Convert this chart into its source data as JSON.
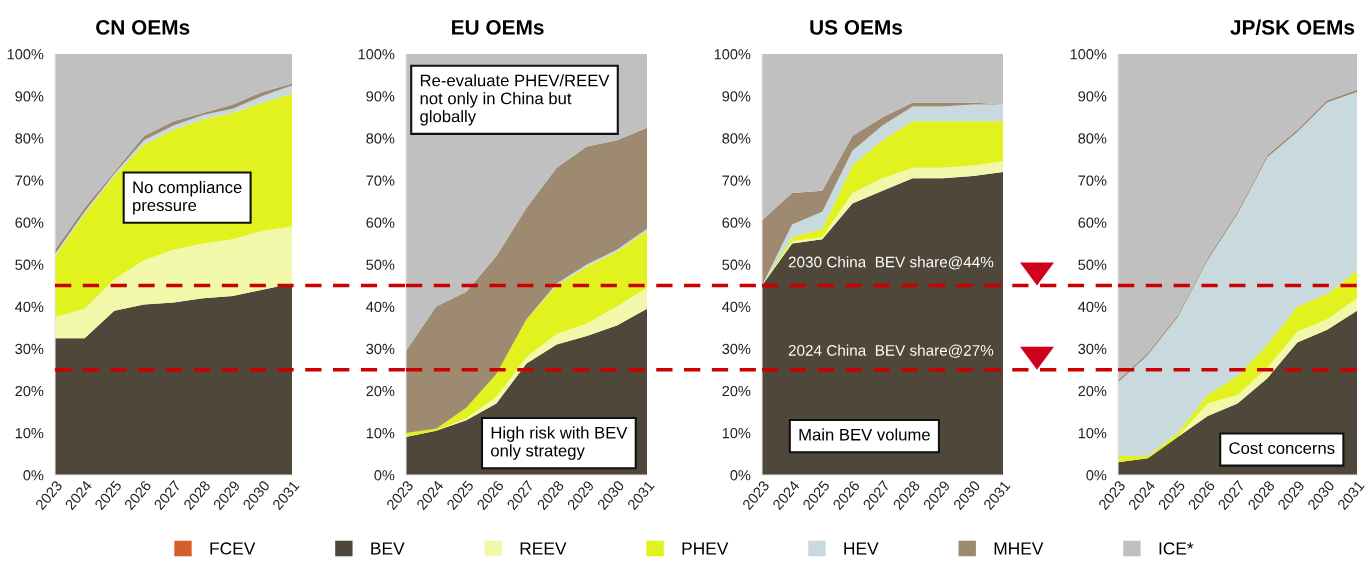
{
  "chart_data": [
    {
      "type": "area",
      "stacked": true,
      "title": "CN OEMs",
      "legend": "bottom",
      "categories": [
        "2023",
        "2024",
        "2025",
        "2026",
        "2027",
        "2028",
        "2029",
        "2030",
        "2031"
      ],
      "ylim": [
        0,
        100
      ],
      "yticks": [
        {
          "value": 0,
          "label": "0%"
        },
        {
          "value": 10,
          "label": "10%"
        },
        {
          "value": 20,
          "label": "20%"
        },
        {
          "value": 30,
          "label": "30%"
        },
        {
          "value": 40,
          "label": "40%"
        },
        {
          "value": 50,
          "label": "50%"
        },
        {
          "value": 60,
          "label": "60%"
        },
        {
          "value": 70,
          "label": "70%"
        },
        {
          "value": 80,
          "label": "80%"
        },
        {
          "value": 90,
          "label": "90%"
        },
        {
          "value": 100,
          "label": "100%"
        }
      ],
      "series": [
        {
          "name": "FCEV",
          "color": "#d45f28",
          "values": [
            null,
            null,
            null,
            null,
            null,
            null,
            null,
            null,
            null
          ]
        },
        {
          "name": "BEV",
          "color": "#4f4739",
          "values": [
            32.5,
            32.5,
            39,
            40.5,
            41,
            42,
            42.5,
            44,
            45.5
          ]
        },
        {
          "name": "REEV",
          "color": "#f1f8a9",
          "values": [
            5,
            7,
            7.5,
            10.5,
            12.5,
            13,
            13.5,
            14,
            13.5
          ]
        },
        {
          "name": "PHEV",
          "color": "#e2f21e",
          "values": [
            14.5,
            22.5,
            24.5,
            27.5,
            28.5,
            29.5,
            30,
            30.5,
            31.5
          ]
        },
        {
          "name": "HEV",
          "color": "#c8dade",
          "values": [
            0.5,
            0.5,
            0.5,
            1,
            1,
            1,
            1,
            1.5,
            2
          ]
        },
        {
          "name": "MHEV",
          "color": "#9d8a70",
          "values": [
            1,
            1,
            0.5,
            1,
            1,
            0.5,
            1,
            1,
            0.5
          ]
        },
        {
          "name": "ICE*",
          "color": "#c0c0c0",
          "values": [
            46.5,
            36.5,
            28,
            19.5,
            16,
            14,
            12,
            9,
            7
          ]
        }
      ],
      "ref_lines": [
        {
          "axis": "y",
          "value": 45,
          "color": "#cc0000",
          "line_style": "dashed"
        },
        {
          "axis": "y",
          "value": 25,
          "color": "#cc0000",
          "line_style": "dashed"
        }
      ],
      "annotations": [
        "No compliance\npressure"
      ]
    },
    {
      "type": "area",
      "stacked": true,
      "title": "EU OEMs",
      "categories": [
        "2023",
        "2024",
        "2025",
        "2026",
        "2027",
        "2028",
        "2029",
        "2030",
        "2031"
      ],
      "ylim": [
        0,
        100
      ],
      "yticks": [
        {
          "value": 0,
          "label": "0%"
        },
        {
          "value": 10,
          "label": "10%"
        },
        {
          "value": 20,
          "label": "20%"
        },
        {
          "value": 30,
          "label": "30%"
        },
        {
          "value": 40,
          "label": "40%"
        },
        {
          "value": 50,
          "label": "50%"
        },
        {
          "value": 60,
          "label": "60%"
        },
        {
          "value": 70,
          "label": "70%"
        },
        {
          "value": 80,
          "label": "80%"
        },
        {
          "value": 90,
          "label": "90%"
        },
        {
          "value": 100,
          "label": "100%"
        }
      ],
      "series": [
        {
          "name": "BEV",
          "color": "#4f4739",
          "values": [
            9,
            10.5,
            13,
            17,
            26.5,
            31,
            33,
            35.5,
            39.5
          ]
        },
        {
          "name": "REEV",
          "color": "#f1f8a9",
          "values": [
            0,
            0,
            0.5,
            1.5,
            1.5,
            2.5,
            3,
            4.5,
            5
          ]
        },
        {
          "name": "PHEV",
          "color": "#e2f21e",
          "values": [
            1,
            0.5,
            2.5,
            5.5,
            9,
            11.5,
            13.5,
            13,
            13.5
          ]
        },
        {
          "name": "HEV",
          "color": "#c8dade",
          "values": [
            0,
            0,
            0,
            0,
            0,
            0.5,
            0.5,
            0.5,
            0.5
          ]
        },
        {
          "name": "MHEV",
          "color": "#9d8a70",
          "values": [
            19.5,
            29,
            27.5,
            28,
            26.5,
            27.5,
            28,
            26,
            24
          ]
        },
        {
          "name": "ICE*",
          "color": "#c0c0c0",
          "values": [
            70.5,
            60,
            56.5,
            48,
            36.5,
            27,
            22,
            20.5,
            17.5
          ]
        }
      ],
      "ref_lines": [
        {
          "axis": "y",
          "value": 45,
          "color": "#cc0000",
          "line_style": "dashed"
        },
        {
          "axis": "y",
          "value": 25,
          "color": "#cc0000",
          "line_style": "dashed"
        }
      ],
      "annotations": [
        "Re-evaluate PHEV/REEV\nnot only in China but\nglobally",
        "High risk with BEV\nonly strategy"
      ]
    },
    {
      "type": "area",
      "stacked": true,
      "title": "US OEMs",
      "categories": [
        "2023",
        "2024",
        "2025",
        "2026",
        "2027",
        "2028",
        "2029",
        "2030",
        "2031"
      ],
      "ylim": [
        0,
        100
      ],
      "yticks": [
        {
          "value": 0,
          "label": "0%"
        },
        {
          "value": 10,
          "label": "10%"
        },
        {
          "value": 20,
          "label": "20%"
        },
        {
          "value": 30,
          "label": "30%"
        },
        {
          "value": 40,
          "label": "40%"
        },
        {
          "value": 50,
          "label": "50%"
        },
        {
          "value": 60,
          "label": "60%"
        },
        {
          "value": 70,
          "label": "70%"
        },
        {
          "value": 80,
          "label": "80%"
        },
        {
          "value": 90,
          "label": "90%"
        },
        {
          "value": 100,
          "label": "100%"
        }
      ],
      "series": [
        {
          "name": "BEV",
          "color": "#4f4739",
          "values": [
            45,
            55,
            56,
            64.5,
            67.5,
            70.5,
            70.5,
            71,
            72
          ]
        },
        {
          "name": "REEV",
          "color": "#f1f8a9",
          "values": [
            0,
            0.5,
            0.5,
            2.5,
            3,
            2.5,
            2.5,
            2.5,
            2.5
          ]
        },
        {
          "name": "PHEV",
          "color": "#e2f21e",
          "values": [
            0,
            1,
            2,
            6.5,
            9,
            11,
            11,
            10.5,
            9.5
          ]
        },
        {
          "name": "HEV",
          "color": "#c8dade",
          "values": [
            0,
            3,
            4,
            3.5,
            3.5,
            3.5,
            3.5,
            4,
            4
          ]
        },
        {
          "name": "MHEV",
          "color": "#9d8a70",
          "values": [
            15.5,
            7.5,
            5,
            3.5,
            2,
            1,
            1,
            0.5,
            0
          ]
        },
        {
          "name": "ICE*",
          "color": "#c0c0c0",
          "values": [
            39.5,
            33,
            32.5,
            19.5,
            15,
            11.5,
            11.5,
            11.5,
            12
          ]
        }
      ],
      "ref_lines": [
        {
          "axis": "y",
          "value": 45,
          "color": "#cc0000",
          "line_style": "dashed",
          "label": "2030 China  BEV share@44%"
        },
        {
          "axis": "y",
          "value": 25,
          "color": "#cc0000",
          "line_style": "dashed",
          "label": "2024 China  BEV share@27%"
        }
      ],
      "annotations": [
        "Main BEV volume"
      ]
    },
    {
      "type": "area",
      "stacked": true,
      "title": "JP/SK OEMs",
      "categories": [
        "2023",
        "2024",
        "2025",
        "2026",
        "2027",
        "2028",
        "2029",
        "2030",
        "2031"
      ],
      "ylim": [
        0,
        100
      ],
      "yticks": [
        {
          "value": 0,
          "label": "0%"
        },
        {
          "value": 10,
          "label": "10%"
        },
        {
          "value": 20,
          "label": "20%"
        },
        {
          "value": 30,
          "label": "30%"
        },
        {
          "value": 40,
          "label": "40%"
        },
        {
          "value": 50,
          "label": "50%"
        },
        {
          "value": 60,
          "label": "60%"
        },
        {
          "value": 70,
          "label": "70%"
        },
        {
          "value": 80,
          "label": "80%"
        },
        {
          "value": 90,
          "label": "90%"
        },
        {
          "value": 100,
          "label": "100%"
        }
      ],
      "series": [
        {
          "name": "BEV",
          "color": "#4f4739",
          "values": [
            3,
            4,
            9,
            14,
            17,
            23,
            31.5,
            34.5,
            39
          ]
        },
        {
          "name": "REEV",
          "color": "#f1f8a9",
          "values": [
            0,
            0,
            0,
            3,
            2,
            2.5,
            2.5,
            2.5,
            3
          ]
        },
        {
          "name": "PHEV",
          "color": "#e2f21e",
          "values": [
            1.5,
            0.5,
            1,
            2,
            4.5,
            5.5,
            6,
            6,
            6.5
          ]
        },
        {
          "name": "HEV",
          "color": "#c8dade",
          "values": [
            17.5,
            24,
            27.5,
            32,
            38.5,
            44.5,
            41.5,
            45.5,
            42.5
          ]
        },
        {
          "name": "MHEV",
          "color": "#9d8a70",
          "values": [
            0.5,
            0.5,
            0.5,
            0.5,
            0.5,
            0.5,
            0.5,
            0.5,
            0.5
          ]
        },
        {
          "name": "ICE*",
          "color": "#c0c0c0",
          "values": [
            77.5,
            71,
            62,
            48.5,
            37.5,
            24,
            18,
            11,
            8.5
          ]
        }
      ],
      "ref_lines": [
        {
          "axis": "y",
          "value": 45,
          "color": "#cc0000",
          "line_style": "dashed"
        },
        {
          "axis": "y",
          "value": 25,
          "color": "#cc0000",
          "line_style": "dashed"
        }
      ],
      "annotations": [
        "Cost concerns"
      ]
    }
  ]
}
